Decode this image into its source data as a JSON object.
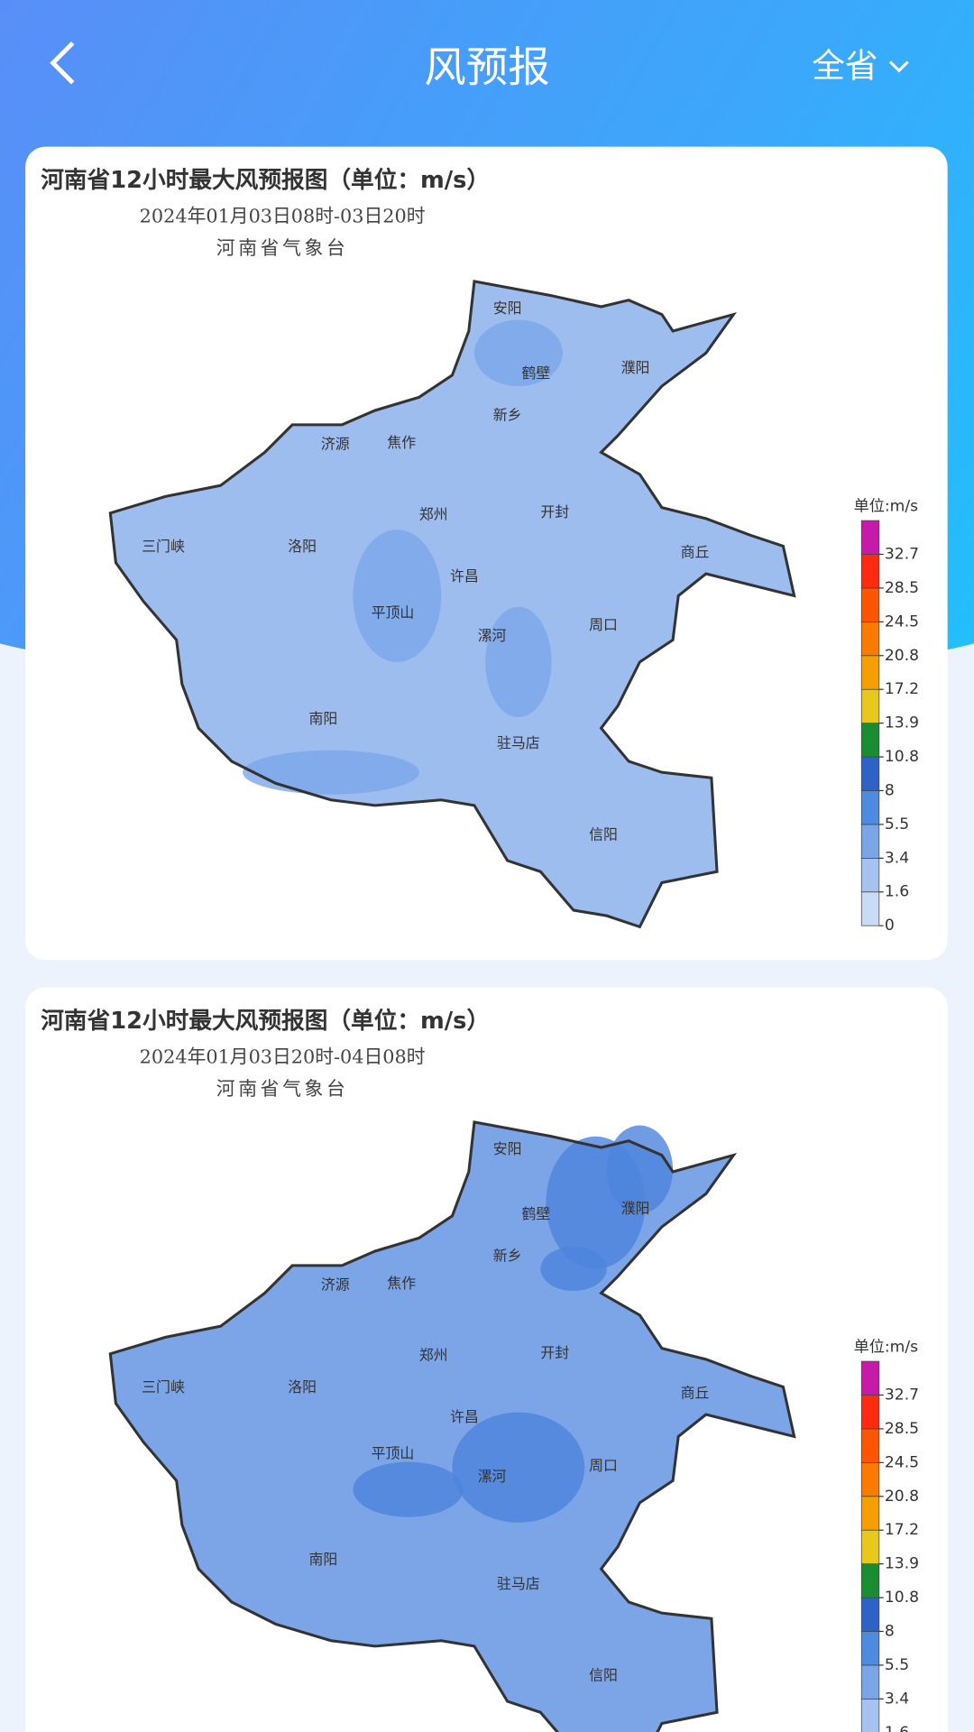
{
  "header": {
    "title": "风预报",
    "region": "全省"
  },
  "cards": [
    {
      "title": "河南省12小时最大风预报图（单位：m/s）",
      "period": "2024年01月03日08时-03日20时",
      "agency": "河南省气象台"
    },
    {
      "title": "河南省12小时最大风预报图（单位：m/s）",
      "period": "2024年01月03日20时-04日08时",
      "agency": "河南省气象台"
    }
  ],
  "cities": [
    "安阳",
    "鹤壁",
    "濮阳",
    "新乡",
    "济源",
    "焦作",
    "郑州",
    "开封",
    "三门峡",
    "洛阳",
    "商丘",
    "许昌",
    "平顶山",
    "漯河",
    "周口",
    "南阳",
    "驻马店",
    "信阳"
  ],
  "legend": {
    "title": "单位:m/s",
    "ticks": [
      0,
      1.6,
      3.4,
      5.5,
      8,
      10.8,
      13.9,
      17.2,
      20.8,
      24.5,
      28.5,
      32.7
    ],
    "colors": [
      "#c9dbf5",
      "#a6c2ee",
      "#7aa6e8",
      "#4d8be0",
      "#2e62c6",
      "#1a8c32",
      "#e8c81c",
      "#f5a000",
      "#fb7a00",
      "#ff5500",
      "#ff2a10",
      "#c71aa8"
    ]
  }
}
